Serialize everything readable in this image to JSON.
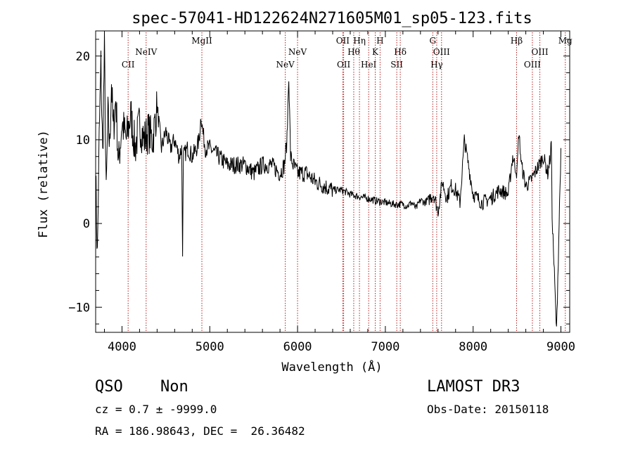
{
  "chart_data": {
    "type": "line",
    "title": "spec-57041-HD122624N271605M01_sp05-123.fits",
    "xlabel": "Wavelength (Å)",
    "ylabel": "Flux (relative)",
    "xlim": [
      3700,
      9100
    ],
    "ylim": [
      -13,
      23
    ],
    "x_ticks": [
      4000,
      5000,
      6000,
      7000,
      8000,
      9000
    ],
    "y_ticks": [
      -10,
      0,
      10,
      20
    ],
    "grid": false,
    "line_color": "#000000",
    "marker_color": "#b02020",
    "series": [
      {
        "x": [
          3700,
          3720,
          3740,
          3760,
          3780,
          3800,
          3820,
          3840,
          3860,
          3880,
          3900,
          3930,
          3960,
          4000,
          4050,
          4100,
          4150,
          4200,
          4250,
          4300,
          4350,
          4400,
          4450,
          4500,
          4550,
          4600,
          4650,
          4680,
          4690,
          4700,
          4750,
          4800,
          4850,
          4880,
          4900,
          4920,
          4950,
          5000,
          5100,
          5200,
          5300,
          5400,
          5500,
          5600,
          5700,
          5800,
          5850,
          5880,
          5900,
          5920,
          5950,
          6000,
          6100,
          6200,
          6300,
          6400,
          6500,
          6600,
          6700,
          6800,
          6900,
          7000,
          7100,
          7200,
          7250,
          7300,
          7350,
          7400,
          7450,
          7500,
          7550,
          7600,
          7650,
          7700,
          7750,
          7800,
          7850,
          7900,
          8000,
          8100,
          8200,
          8300,
          8400,
          8450,
          8500,
          8520,
          8550,
          8600,
          8650,
          8700,
          8750,
          8800,
          8850,
          8880,
          8890,
          8900,
          8950,
          9000
        ],
        "y": [
          6,
          -4,
          10,
          19,
          8,
          21,
          3,
          13,
          9,
          17,
          11,
          15,
          7,
          12,
          10,
          13,
          9,
          12,
          10,
          11,
          10,
          14,
          9,
          11,
          9,
          10,
          8,
          9,
          -3,
          8,
          9,
          8,
          9,
          10,
          13,
          11,
          9,
          9,
          8,
          7,
          7,
          7,
          6,
          7,
          7,
          6,
          7,
          10,
          18,
          8,
          7,
          6,
          6,
          5,
          4.5,
          4,
          4,
          3.5,
          3.2,
          3,
          2.7,
          2.5,
          2.3,
          2.3,
          2.1,
          2.5,
          1.8,
          2.8,
          2.5,
          3,
          3.5,
          1.5,
          5,
          3,
          4.5,
          4,
          2.5,
          10,
          3.5,
          2.5,
          3,
          4,
          3.5,
          8,
          6,
          11,
          7,
          4.5,
          5,
          6,
          7,
          8,
          6,
          8,
          10,
          1,
          -13,
          9
        ]
      }
    ],
    "line_markers": [
      {
        "label": "CII",
        "x": 4070,
        "row": "mid"
      },
      {
        "label": "NeIV",
        "x": 4275,
        "row": "up"
      },
      {
        "label": "MgII",
        "x": 4910,
        "row": "top"
      },
      {
        "label": "NeV",
        "x": 5860,
        "row": "mid"
      },
      {
        "label": "NeV",
        "x": 6000,
        "row": "up"
      },
      {
        "label": "OII",
        "x": 6515,
        "row": "top"
      },
      {
        "label": "OII",
        "x": 6525,
        "row": "mid"
      },
      {
        "label": "Hθ",
        "x": 6640,
        "row": "up"
      },
      {
        "label": "Hη",
        "x": 6705,
        "row": "top"
      },
      {
        "label": "HeI",
        "x": 6810,
        "row": "mid"
      },
      {
        "label": "K",
        "x": 6885,
        "row": "up"
      },
      {
        "label": "H",
        "x": 6940,
        "row": "top"
      },
      {
        "label": "SII",
        "x": 7130,
        "row": "mid"
      },
      {
        "label": "Hδ",
        "x": 7170,
        "row": "up"
      },
      {
        "label": "G",
        "x": 7540,
        "row": "top"
      },
      {
        "label": "Hγ",
        "x": 7585,
        "row": "mid"
      },
      {
        "label": "OIII",
        "x": 7640,
        "row": "up"
      },
      {
        "label": "Hβ",
        "x": 8495,
        "row": "top"
      },
      {
        "label": "OIII",
        "x": 8675,
        "row": "mid"
      },
      {
        "label": "OIII",
        "x": 8760,
        "row": "up"
      },
      {
        "label": "Mg",
        "x": 9050,
        "row": "top"
      }
    ]
  },
  "info": {
    "class_label": "QSO",
    "subclass_label": "Non",
    "survey_label": "LAMOST DR3",
    "cz_line": "cz = 0.7 ± -9999.0",
    "obs_date_line": "Obs-Date: 20150118",
    "coords_line": "RA = 186.98643, DEC =  26.36482"
  }
}
